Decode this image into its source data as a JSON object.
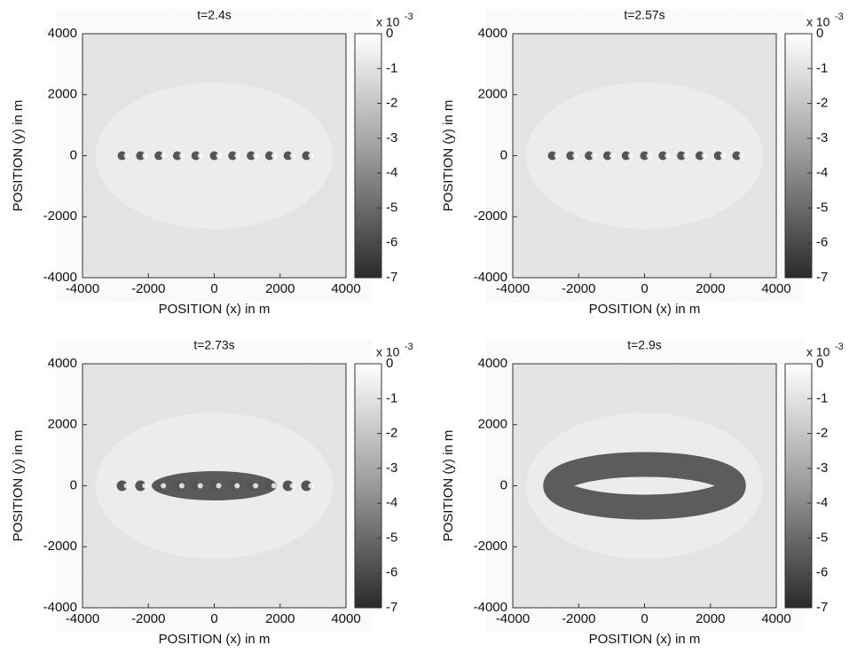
{
  "chart_data": [
    {
      "type": "heatmap",
      "title": "t=2.4s",
      "xlabel": "POSITION (x) in m",
      "ylabel": "POSITION (y) in m",
      "xlim": [
        -4000,
        4000
      ],
      "ylim": [
        -4000,
        4000
      ],
      "xticks": [
        -4000,
        -2000,
        0,
        2000,
        4000
      ],
      "yticks": [
        -4000,
        -2000,
        0,
        2000,
        4000
      ],
      "clim": [
        -7,
        0
      ],
      "cticks": [
        0,
        -1,
        -2,
        -3,
        -4,
        -5,
        -6,
        -7
      ],
      "colorbar_multiplier": {
        "base": "x 10",
        "exponent": "-3"
      },
      "sources_x": [
        -2800,
        -2240,
        -1680,
        -1120,
        -560,
        0,
        560,
        1120,
        1680,
        2240,
        2800
      ],
      "sources_y": 0
    },
    {
      "type": "heatmap",
      "title": "t=2.57s",
      "xlabel": "POSITION (x) in m",
      "ylabel": "POSITION (y) in m",
      "xlim": [
        -4000,
        4000
      ],
      "ylim": [
        -4000,
        4000
      ],
      "xticks": [
        -4000,
        -2000,
        0,
        2000,
        4000
      ],
      "yticks": [
        -4000,
        -2000,
        0,
        2000,
        4000
      ],
      "clim": [
        -7,
        0
      ],
      "cticks": [
        0,
        -1,
        -2,
        -3,
        -4,
        -5,
        -6,
        -7
      ],
      "colorbar_multiplier": {
        "base": "x 10",
        "exponent": "-3"
      },
      "sources_x": [
        -2800,
        -2240,
        -1680,
        -1120,
        -560,
        0,
        560,
        1120,
        1680,
        2240,
        2800
      ],
      "sources_y": 0
    },
    {
      "type": "heatmap",
      "title": "t=2.73s",
      "xlabel": "POSITION (x) in m",
      "ylabel": "POSITION (y) in m",
      "xlim": [
        -4000,
        4000
      ],
      "ylim": [
        -4000,
        4000
      ],
      "xticks": [
        -4000,
        -2000,
        0,
        2000,
        4000
      ],
      "yticks": [
        -4000,
        -2000,
        0,
        2000,
        4000
      ],
      "clim": [
        -7,
        0
      ],
      "cticks": [
        0,
        -1,
        -2,
        -3,
        -4,
        -5,
        -6,
        -7
      ],
      "colorbar_multiplier": {
        "base": "x 10",
        "exponent": "-3"
      },
      "sources_x": [
        -2800,
        -2240,
        -1680,
        -1120,
        -560,
        0,
        560,
        1120,
        1680,
        2240,
        2800
      ],
      "sources_y": 0,
      "blob": {
        "rx": 1900,
        "ry": 480
      }
    },
    {
      "type": "heatmap",
      "title": "t=2.9s",
      "xlabel": "POSITION (x) in m",
      "ylabel": "POSITION (y) in m",
      "xlim": [
        -4000,
        4000
      ],
      "ylim": [
        -4000,
        4000
      ],
      "xticks": [
        -4000,
        -2000,
        0,
        2000,
        4000
      ],
      "yticks": [
        -4000,
        -2000,
        0,
        2000,
        4000
      ],
      "clim": [
        -7,
        0
      ],
      "cticks": [
        0,
        -1,
        -2,
        -3,
        -4,
        -5,
        -6,
        -7
      ],
      "colorbar_multiplier": {
        "base": "x 10",
        "exponent": "-3"
      },
      "sources_x": [],
      "sources_y": 0,
      "ring": {
        "rx": 2700,
        "ry": 700
      }
    }
  ]
}
